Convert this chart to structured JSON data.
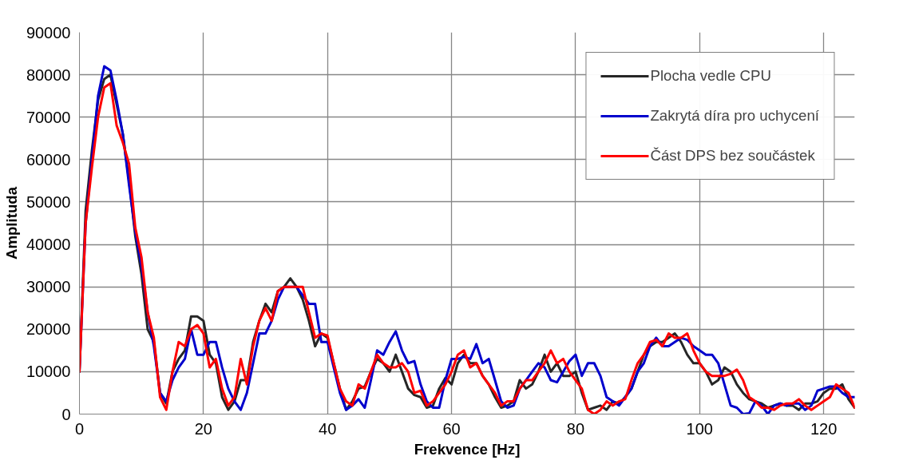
{
  "chart_data": {
    "type": "line",
    "xlabel": "Frekvence [Hz]",
    "ylabel": "Amplituda",
    "x": [
      0,
      1,
      2,
      3,
      4,
      5,
      6,
      7,
      8,
      9,
      10,
      11,
      12,
      13,
      14,
      15,
      16,
      17,
      18,
      19,
      20,
      21,
      22,
      23,
      24,
      25,
      26,
      27,
      28,
      29,
      30,
      31,
      32,
      33,
      34,
      35,
      36,
      37,
      38,
      39,
      40,
      41,
      42,
      43,
      44,
      45,
      46,
      47,
      48,
      49,
      50,
      51,
      52,
      53,
      54,
      55,
      56,
      57,
      58,
      59,
      60,
      61,
      62,
      63,
      64,
      65,
      66,
      67,
      68,
      69,
      70,
      71,
      72,
      73,
      74,
      75,
      76,
      77,
      78,
      79,
      80,
      81,
      82,
      83,
      84,
      85,
      86,
      87,
      88,
      89,
      90,
      91,
      92,
      93,
      94,
      95,
      96,
      97,
      98,
      99,
      100,
      101,
      102,
      103,
      104,
      105,
      106,
      107,
      108,
      109,
      110,
      111,
      112,
      113,
      114,
      115,
      116,
      117,
      118,
      119,
      120,
      121,
      122,
      123,
      124,
      125
    ],
    "series": [
      {
        "name": "Plocha vedle CPU",
        "color": "#262626",
        "values": [
          10000,
          48000,
          62000,
          74000,
          79000,
          80000,
          73000,
          66000,
          55000,
          42000,
          33000,
          20000,
          17000,
          5000,
          2500,
          10000,
          13000,
          15000,
          23000,
          23000,
          22000,
          14000,
          12000,
          4000,
          1000,
          3000,
          8000,
          8000,
          17000,
          22000,
          26000,
          24000,
          29000,
          30000,
          32000,
          30000,
          27000,
          22000,
          16000,
          19000,
          18000,
          12000,
          6000,
          1000,
          3000,
          6000,
          6500,
          10000,
          13000,
          12000,
          10000,
          14000,
          10000,
          6000,
          4500,
          4000,
          1500,
          2000,
          6000,
          8500,
          7000,
          12000,
          14000,
          12000,
          12000,
          9000,
          7000,
          4000,
          1500,
          2000,
          3000,
          8000,
          6000,
          7000,
          10000,
          14000,
          10000,
          12000,
          9000,
          9000,
          10000,
          5000,
          1000,
          1500,
          2000,
          1000,
          3000,
          2500,
          4000,
          6000,
          10000,
          14000,
          16000,
          17000,
          17000,
          18000,
          19000,
          17000,
          14000,
          12000,
          12000,
          10000,
          7000,
          8000,
          11000,
          10000,
          7000,
          5000,
          3500,
          3000,
          2500,
          1500,
          2000,
          2500,
          2000,
          2000,
          1000,
          2500,
          2500,
          3000,
          5000,
          6000,
          6000,
          7000,
          3500,
          1500
        ]
      },
      {
        "name": "Zakrytá díra pro uchycení",
        "color": "#0000cc",
        "values": [
          10000,
          45000,
          60000,
          75000,
          82000,
          81000,
          74000,
          66000,
          54000,
          43000,
          35000,
          24000,
          16000,
          5000,
          3000,
          8000,
          11000,
          13000,
          20000,
          14000,
          14000,
          17000,
          17000,
          11000,
          6000,
          3000,
          1000,
          5000,
          12000,
          19000,
          19000,
          22000,
          27000,
          30000,
          30000,
          30000,
          28000,
          26000,
          26000,
          17000,
          17000,
          11000,
          5000,
          1000,
          2000,
          3500,
          1500,
          8000,
          15000,
          14000,
          17000,
          19500,
          15000,
          12000,
          12500,
          7000,
          3000,
          1500,
          1500,
          8000,
          13000,
          13000,
          13500,
          13000,
          16500,
          12000,
          13000,
          8000,
          3000,
          1500,
          2000,
          6000,
          8000,
          10000,
          12000,
          11000,
          8000,
          7500,
          10000,
          12500,
          14000,
          9000,
          12000,
          12000,
          9000,
          4000,
          3000,
          2000,
          4000,
          6000,
          10000,
          12000,
          16000,
          18000,
          16000,
          16000,
          17000,
          18000,
          17500,
          16000,
          15000,
          14000,
          14000,
          12000,
          7000,
          2000,
          1500,
          0,
          200,
          3000,
          2000,
          0,
          2000,
          2500,
          2000,
          2500,
          2500,
          1000,
          2000,
          5500,
          6000,
          6500,
          6500,
          5000,
          4000,
          4000
        ]
      },
      {
        "name": "Část DPS bez součástek",
        "color": "#ff0000",
        "values": [
          10000,
          45000,
          58000,
          70000,
          77000,
          78000,
          68000,
          64000,
          59000,
          44000,
          37000,
          24000,
          18000,
          4000,
          1000,
          10000,
          17000,
          16000,
          20000,
          21000,
          19000,
          11000,
          13000,
          6000,
          2000,
          4000,
          13000,
          7000,
          16000,
          22000,
          25000,
          22000,
          29000,
          30000,
          30000,
          30000,
          30000,
          24000,
          18000,
          19000,
          18500,
          12000,
          6000,
          3000,
          2000,
          7000,
          6000,
          10000,
          14000,
          12000,
          11000,
          11000,
          12000,
          10000,
          5000,
          5500,
          2000,
          3000,
          5000,
          7000,
          10000,
          14000,
          15000,
          11000,
          12000,
          9000,
          7000,
          5000,
          2000,
          3000,
          3000,
          6000,
          8000,
          8000,
          10000,
          12000,
          15000,
          12000,
          13000,
          10000,
          8000,
          6000,
          1000,
          0,
          1000,
          3000,
          2000,
          3000,
          3500,
          8000,
          12000,
          14000,
          17000,
          17500,
          16000,
          19000,
          18000,
          18000,
          19000,
          15000,
          12000,
          10000,
          9000,
          9000,
          9000,
          9500,
          10500,
          8000,
          4000,
          3000,
          1500,
          1500,
          1000,
          2000,
          2500,
          2500,
          3500,
          2000,
          1000,
          2000,
          3000,
          4000,
          7000,
          6000,
          5000,
          1500
        ]
      }
    ],
    "xlim": [
      0,
      125
    ],
    "xticks": [
      0,
      20,
      40,
      60,
      80,
      100,
      120
    ],
    "ylim": [
      0,
      90000
    ],
    "yticks": [
      0,
      10000,
      20000,
      30000,
      40000,
      50000,
      60000,
      70000,
      80000,
      90000
    ],
    "grid": true,
    "legend": "top right",
    "marker": "none",
    "line_style": "solid"
  }
}
